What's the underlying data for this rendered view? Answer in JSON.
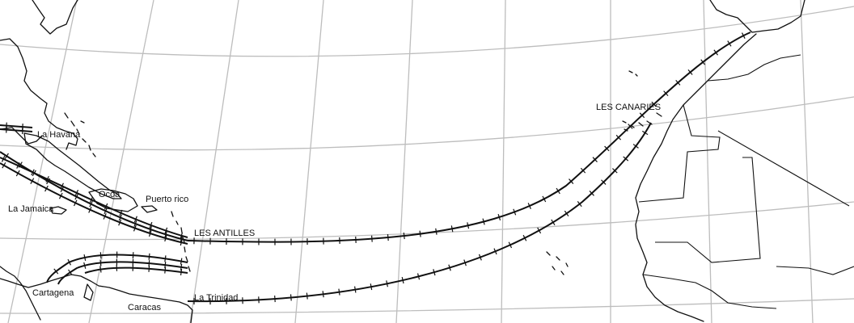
{
  "map": {
    "labels": {
      "havana": "La Havana",
      "jamaica": "La Jamaica",
      "ocoa": "Ocoa",
      "puerto_rico": "Puerto rico",
      "antilles": "LES ANTILLES",
      "canaries": "LES CANARIES",
      "cartagena": "Cartagena",
      "caracas": "Caracas",
      "trinidad": "La Trinidad"
    },
    "routes": [
      {
        "from": "LES CANARIES",
        "to": "LES ANTILLES",
        "style": "ticked"
      },
      {
        "from": "LES CANARIES",
        "to": "La Trinidad",
        "style": "ticked"
      },
      {
        "from": "LES ANTILLES",
        "to": "La Havana",
        "style": "double-ticked"
      },
      {
        "from": "LES ANTILLES",
        "to": "Cartagena",
        "style": "double-ticked"
      }
    ],
    "colors": {
      "ink": "#111111",
      "graticule": "#bdbdbd",
      "background": "#ffffff"
    }
  }
}
